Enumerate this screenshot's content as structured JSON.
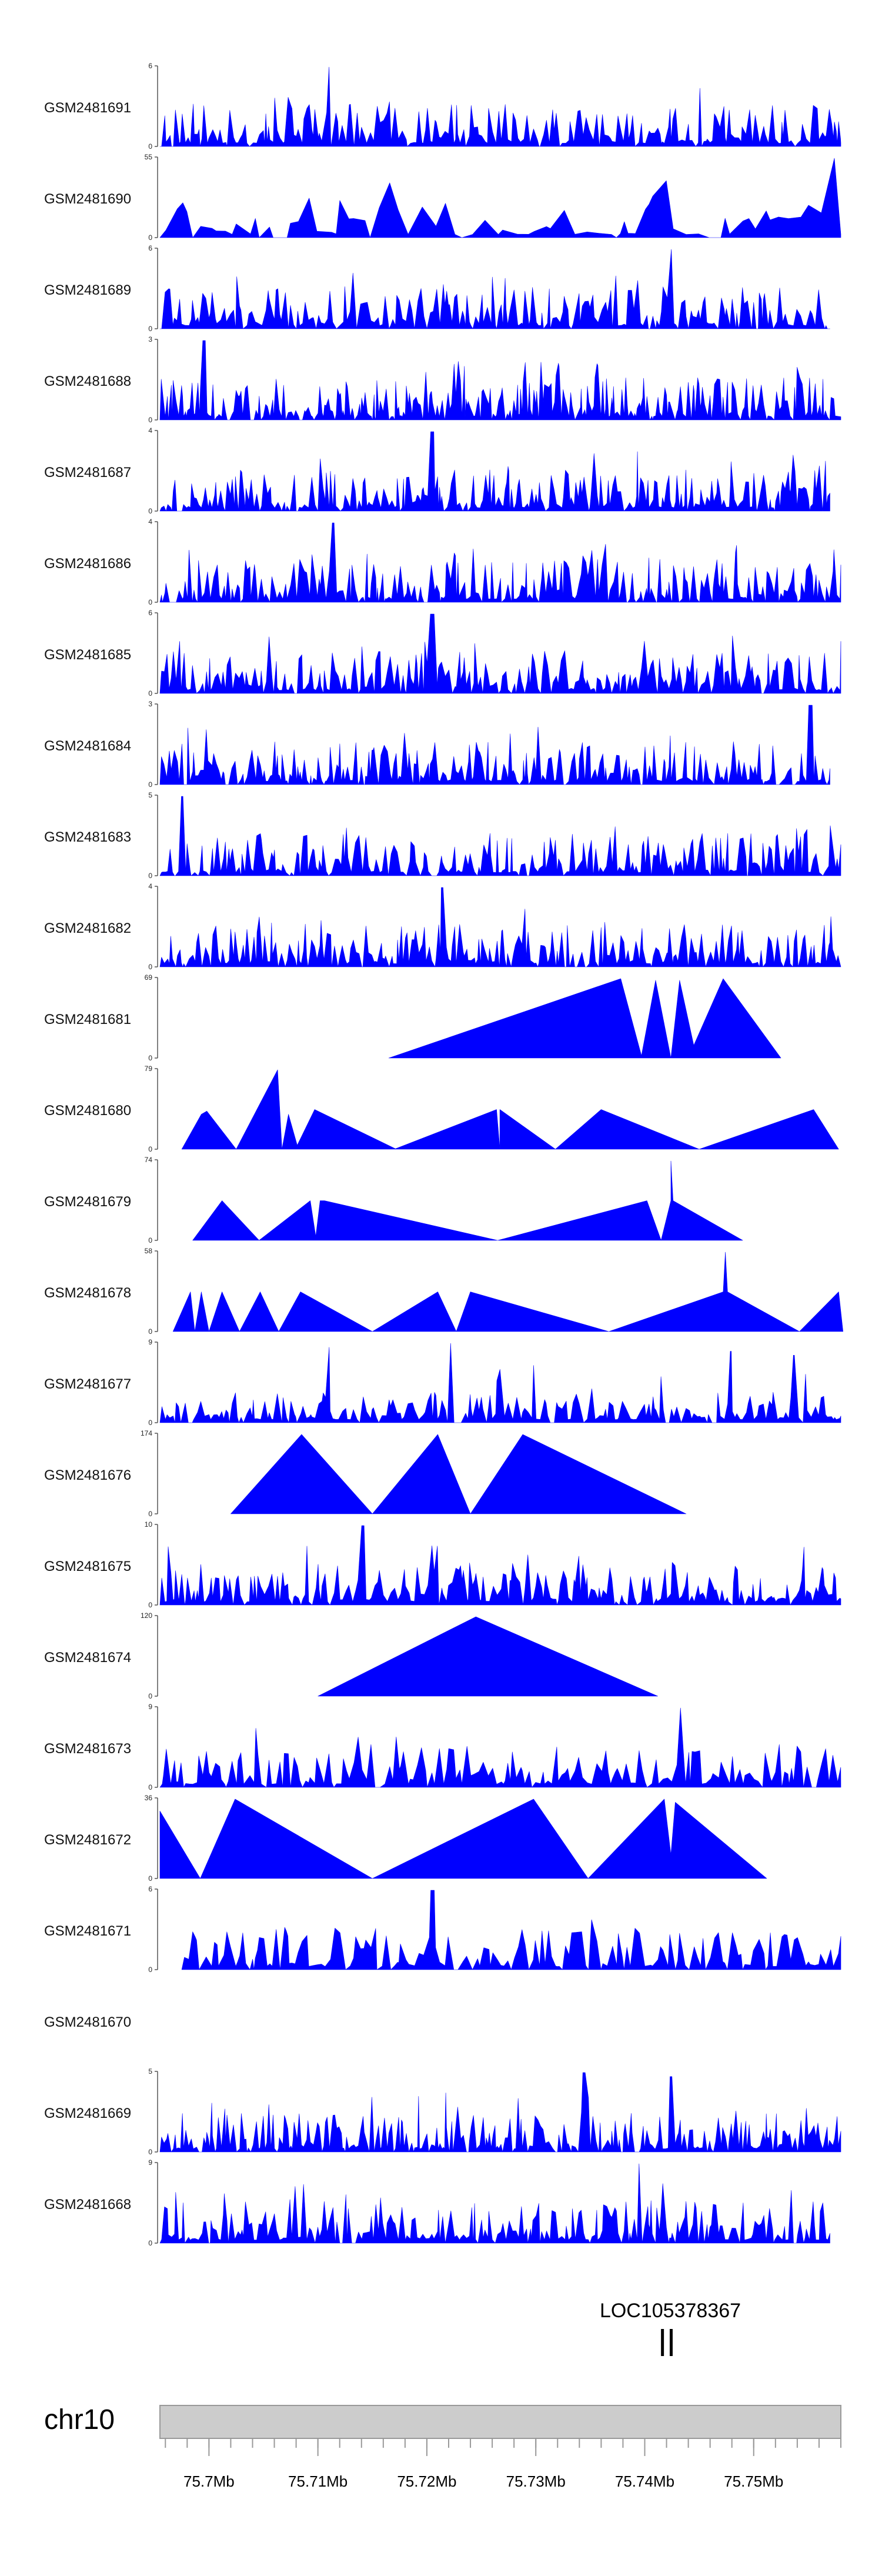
{
  "chart_data": {
    "type": "area",
    "chromosome": "chr10",
    "xlim": [
      75.6955,
      75.758
    ],
    "x_tick_values": [
      75.7,
      75.71,
      75.72,
      75.73,
      75.74,
      75.75
    ],
    "x_tick_labels": [
      "75.7Mb",
      "75.71Mb",
      "75.72Mb",
      "75.73Mb",
      "75.74Mb",
      "75.75Mb"
    ],
    "minor_tick_step": 0.002,
    "gene": {
      "name": "LOC105378367",
      "exons": [
        75.7416,
        75.7424
      ]
    },
    "colors": {
      "fill": "#0000ff",
      "axis_bar": "#cccccc",
      "axis_bar_edge": "#999999"
    },
    "tracks": [
      {
        "label": "GSM2481691",
        "ymax": 6,
        "ytick_top": "6",
        "ytick_bottom": "0",
        "style": "spiky",
        "seed": 11,
        "density": 1.0,
        "extent": [
          75.6955,
          75.758
        ],
        "peaks": [
          [
            75.711,
            1.0
          ]
        ]
      },
      {
        "label": "GSM2481690",
        "ymax": 55,
        "ytick_top": "55",
        "ytick_bottom": "0",
        "style": "spiky",
        "seed": 23,
        "density": 0.28,
        "extent": [
          75.6955,
          75.758
        ],
        "peaks": [
          [
            75.7575,
            1.0
          ]
        ]
      },
      {
        "label": "GSM2481689",
        "ymax": 6,
        "ytick_top": "6",
        "ytick_bottom": "0",
        "style": "spiky",
        "seed": 31,
        "density": 1.0,
        "extent": [
          75.6955,
          75.757
        ],
        "peaks": [
          [
            75.7425,
            1.0
          ]
        ]
      },
      {
        "label": "GSM2481688",
        "ymax": 3,
        "ytick_top": "3",
        "ytick_bottom": "0",
        "style": "spiky",
        "seed": 47,
        "density": 1.3,
        "extent": [
          75.6955,
          75.758
        ],
        "peaks": [
          [
            75.6995,
            1.0
          ]
        ]
      },
      {
        "label": "GSM2481687",
        "ymax": 4,
        "ytick_top": "4",
        "ytick_bottom": "0",
        "style": "spiky",
        "seed": 53,
        "density": 1.2,
        "extent": [
          75.6955,
          75.757
        ],
        "peaks": [
          [
            75.7205,
            1.0
          ]
        ]
      },
      {
        "label": "GSM2481686",
        "ymax": 4,
        "ytick_top": "4",
        "ytick_bottom": "0",
        "style": "spiky",
        "seed": 67,
        "density": 1.1,
        "extent": [
          75.6955,
          75.758
        ],
        "peaks": [
          [
            75.7114,
            1.0
          ]
        ]
      },
      {
        "label": "GSM2481685",
        "ymax": 6,
        "ytick_top": "6",
        "ytick_bottom": "0",
        "style": "spiky",
        "seed": 71,
        "density": 1.1,
        "extent": [
          75.6955,
          75.758
        ],
        "peaks": [
          [
            75.7205,
            1.0
          ]
        ]
      },
      {
        "label": "GSM2481684",
        "ymax": 3,
        "ytick_top": "3",
        "ytick_bottom": "0",
        "style": "spiky",
        "seed": 83,
        "density": 1.2,
        "extent": [
          75.6955,
          75.757
        ],
        "peaks": [
          [
            75.7552,
            1.0
          ]
        ]
      },
      {
        "label": "GSM2481683",
        "ymax": 5,
        "ytick_top": "5",
        "ytick_bottom": "0",
        "style": "spiky",
        "seed": 97,
        "density": 1.1,
        "extent": [
          75.6955,
          75.758
        ],
        "peaks": [
          [
            75.6975,
            1.0
          ]
        ]
      },
      {
        "label": "GSM2481682",
        "ymax": 4,
        "ytick_top": "4",
        "ytick_bottom": "0",
        "style": "spiky",
        "seed": 101,
        "density": 1.1,
        "extent": [
          75.6955,
          75.758
        ],
        "peaks": [
          [
            75.7215,
            1.0
          ]
        ]
      },
      {
        "label": "GSM2481681",
        "ymax": 69,
        "ytick_top": "69",
        "ytick_bottom": "0",
        "style": "sparse",
        "points": [
          [
            75.7165,
            0
          ],
          [
            75.7378,
            1.0
          ],
          [
            75.7397,
            0.03
          ],
          [
            75.741,
            0.98
          ],
          [
            75.7424,
            0
          ],
          [
            75.7432,
            0.98
          ],
          [
            75.7445,
            0.16
          ],
          [
            75.7472,
            1.0
          ],
          [
            75.7525,
            0
          ]
        ]
      },
      {
        "label": "GSM2481680",
        "ymax": 79,
        "ytick_top": "79",
        "ytick_bottom": "0",
        "style": "sparse",
        "points": [
          [
            75.6975,
            0
          ],
          [
            75.6993,
            0.44
          ],
          [
            75.6998,
            0.48
          ],
          [
            75.7025,
            0
          ],
          [
            75.7063,
            1.0
          ],
          [
            75.7067,
            0
          ],
          [
            75.7073,
            0.44
          ],
          [
            75.7081,
            0.05
          ],
          [
            75.7097,
            0.5
          ],
          [
            75.7172,
            0
          ],
          [
            75.717,
            0
          ],
          [
            75.7264,
            0.5
          ],
          [
            75.7267,
            0
          ],
          [
            75.7267,
            0.5
          ],
          [
            75.7318,
            0
          ],
          [
            75.736,
            0.5
          ],
          [
            75.745,
            0
          ],
          [
            75.7555,
            0.5
          ],
          [
            75.7578,
            0
          ]
        ]
      },
      {
        "label": "GSM2481679",
        "ymax": 74,
        "ytick_top": "74",
        "ytick_bottom": "0",
        "style": "sparse",
        "points": [
          [
            75.6985,
            0
          ],
          [
            75.7012,
            0.5
          ],
          [
            75.7046,
            0
          ],
          [
            75.7093,
            0.5
          ],
          [
            75.7098,
            0.05
          ],
          [
            75.7102,
            0.5
          ],
          [
            75.7106,
            0.5
          ],
          [
            75.7265,
            0
          ],
          [
            75.7402,
            0.5
          ],
          [
            75.7415,
            0
          ],
          [
            75.7424,
            0.5
          ],
          [
            75.7424,
            1.0
          ],
          [
            75.7426,
            0.5
          ],
          [
            75.749,
            0
          ]
        ]
      },
      {
        "label": "GSM2481678",
        "ymax": 58,
        "ytick_top": "58",
        "ytick_bottom": "0",
        "style": "sparse",
        "points": [
          [
            75.6967,
            0
          ],
          [
            75.6983,
            0.5
          ],
          [
            75.6987,
            0
          ],
          [
            75.6993,
            0.5
          ],
          [
            75.7,
            0
          ],
          [
            75.7012,
            0.5
          ],
          [
            75.7028,
            0
          ],
          [
            75.7047,
            0.5
          ],
          [
            75.7064,
            0
          ],
          [
            75.7084,
            0.5
          ],
          [
            75.715,
            0
          ],
          [
            75.721,
            0.5
          ],
          [
            75.7227,
            0
          ],
          [
            75.724,
            0.5
          ],
          [
            75.7367,
            0
          ],
          [
            75.7472,
            0.5
          ],
          [
            75.7474,
            1.0
          ],
          [
            75.7476,
            0.5
          ],
          [
            75.7542,
            0
          ],
          [
            75.7578,
            0.5
          ],
          [
            75.7582,
            0
          ]
        ]
      },
      {
        "label": "GSM2481677",
        "ymax": 9,
        "ytick_top": "9",
        "ytick_bottom": "0",
        "style": "spiky",
        "seed": 137,
        "density": 0.9,
        "extent": [
          75.6955,
          75.758
        ],
        "scale": 0.35,
        "peaks": [
          [
            75.7109,
            0.95
          ],
          [
            75.7222,
            1.0
          ],
          [
            75.7478,
            0.9
          ],
          [
            75.7538,
            0.85
          ]
        ]
      },
      {
        "label": "GSM2481676",
        "ymax": 174,
        "ytick_top": "174",
        "ytick_bottom": "0",
        "style": "sparse",
        "points": [
          [
            75.702,
            0
          ],
          [
            75.7085,
            1.0
          ],
          [
            75.715,
            0
          ],
          [
            75.721,
            1.0
          ],
          [
            75.724,
            0
          ],
          [
            75.7288,
            1.0
          ],
          [
            75.7438,
            0
          ]
        ]
      },
      {
        "label": "GSM2481675",
        "ymax": 10,
        "ytick_top": "10",
        "ytick_bottom": "0",
        "style": "spiky",
        "seed": 149,
        "density": 1.0,
        "extent": [
          75.6955,
          75.758
        ],
        "peaks": [
          [
            75.7141,
            1.0
          ]
        ]
      },
      {
        "label": "GSM2481674",
        "ymax": 120,
        "ytick_top": "120",
        "ytick_bottom": "0",
        "style": "sparse",
        "points": [
          [
            75.71,
            0
          ],
          [
            75.7245,
            1.0
          ],
          [
            75.7412,
            0
          ]
        ]
      },
      {
        "label": "GSM2481673",
        "ymax": 9,
        "ytick_top": "9",
        "ytick_bottom": "0",
        "style": "spiky",
        "seed": 163,
        "density": 0.8,
        "extent": [
          75.6955,
          75.758
        ],
        "peaks": [
          [
            75.7432,
            1.0
          ]
        ]
      },
      {
        "label": "GSM2481672",
        "ymax": 36,
        "ytick_top": "36",
        "ytick_bottom": "0",
        "style": "sparse",
        "points": [
          [
            75.6955,
            0
          ],
          [
            75.6955,
            0.85
          ],
          [
            75.6992,
            0
          ],
          [
            75.7024,
            1.0
          ],
          [
            75.715,
            0
          ],
          [
            75.7298,
            1.0
          ],
          [
            75.7348,
            0
          ],
          [
            75.7418,
            1.0
          ],
          [
            75.7424,
            0.3
          ],
          [
            75.7428,
            0.96
          ],
          [
            75.7512,
            0
          ]
        ]
      },
      {
        "label": "GSM2481671",
        "ymax": 6,
        "ytick_top": "6",
        "ytick_bottom": "0",
        "style": "spiky",
        "seed": 179,
        "density": 0.7,
        "extent": [
          75.6975,
          75.758
        ],
        "peaks": [
          [
            75.7205,
            1.0
          ]
        ]
      },
      {
        "label": "GSM2481670",
        "ymax": null,
        "style": "empty"
      },
      {
        "label": "GSM2481669",
        "ymax": 5,
        "ytick_top": "5",
        "ytick_bottom": "0",
        "style": "spiky",
        "seed": 191,
        "density": 1.2,
        "extent": [
          75.6955,
          75.758
        ],
        "scale": 0.45,
        "peaks": [
          [
            75.7345,
            1.0
          ],
          [
            75.7425,
            0.95
          ]
        ]
      },
      {
        "label": "GSM2481668",
        "ymax": 9,
        "ytick_top": "9",
        "ytick_bottom": "0",
        "style": "spiky",
        "seed": 197,
        "density": 1.1,
        "extent": [
          75.6955,
          75.757
        ],
        "peaks": [
          [
            75.7395,
            1.0
          ]
        ]
      }
    ]
  }
}
